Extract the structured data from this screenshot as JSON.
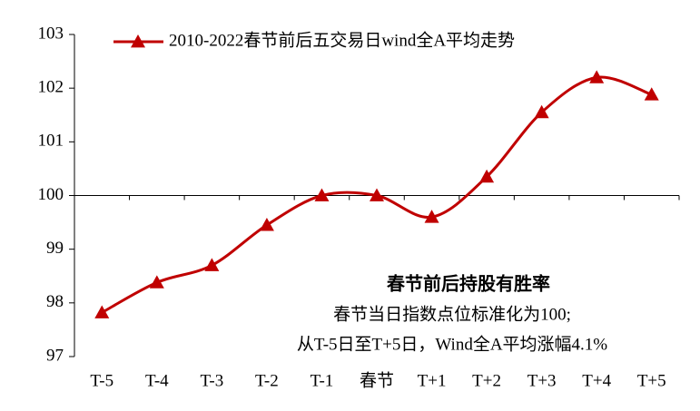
{
  "chart_data": {
    "type": "line",
    "categories": [
      "T-5",
      "T-4",
      "T-3",
      "T-2",
      "T-1",
      "春节",
      "T+1",
      "T+2",
      "T+3",
      "T+4",
      "T+5"
    ],
    "series": [
      {
        "name": "2010-2022春节前后五交易日wind全A平均走势",
        "color": "#c00000",
        "values": [
          97.82,
          98.38,
          98.7,
          99.45,
          100.0,
          100.0,
          99.6,
          100.35,
          101.55,
          102.2,
          101.88
        ]
      }
    ],
    "ylim": [
      97,
      103
    ],
    "yticks": [
      97,
      98,
      99,
      100,
      101,
      102,
      103
    ],
    "xaxis_at": 100,
    "smooth": true,
    "legend": "top",
    "annotations": [
      "春节前后持股有胜率",
      "春节当日指数点位标准化为100;",
      "从T-5日至T+5日，Wind全A平均涨幅4.1%"
    ]
  }
}
